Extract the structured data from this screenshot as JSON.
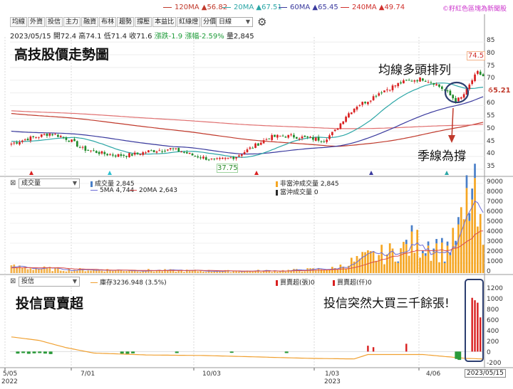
{
  "ma_legend": [
    {
      "label": "120MA",
      "value": "▲56.82",
      "color": "#c0392b"
    },
    {
      "label": "20MA",
      "value": "▲67.51",
      "color": "#2ba6a6"
    },
    {
      "label": "60MA",
      "value": "▲65.45",
      "color": "#3a3a9e"
    },
    {
      "label": "240MA",
      "value": "▲49.74",
      "color": "#d0312d"
    }
  ],
  "brand": {
    "text": "©籽紅色區塊為新聞股",
    "color": "#cc33cc"
  },
  "toolbar": {
    "buttons": [
      "均線",
      "外資",
      "投信",
      "主力",
      "融資",
      "布林",
      "趨勢",
      "撐壓",
      "本益比",
      "紅綠燈",
      "分價量"
    ],
    "period": "日線"
  },
  "quote": {
    "date": "2023/05/15",
    "open_label": "開",
    "open": "72.4",
    "high_label": "高",
    "high": "74.1",
    "low_label": "低",
    "low": "71.4",
    "close_label": "收",
    "close": "71.6",
    "change_label": "漲跌",
    "change": "-1.9",
    "pct_label": "漲幅",
    "pct": "-2.59%",
    "volume_label": "量",
    "volume": "2,845"
  },
  "price_panel": {
    "title": "高技股價走勢圖",
    "annotation_ma": "均線多頭排列",
    "annotation_support": "季線為撐",
    "high_marker": "74.5",
    "low_marker": "37.75",
    "ma60_marker": "65.21",
    "y_ticks": [
      "85",
      "80",
      "75",
      "70",
      "65",
      "60",
      "55",
      "50",
      "45",
      "40",
      "35"
    ]
  },
  "volume_panel": {
    "selector": "成交量",
    "legend": [
      {
        "label": "成交量 2,845",
        "color": "#4a7fc8"
      },
      {
        "label": "5MA 4,744",
        "color": "#6b6bd6"
      },
      {
        "label": "20MA 2,643",
        "color": "#d94c4c"
      },
      {
        "label": "非當沖成交量 2,845",
        "color": "#f5a623"
      },
      {
        "label": "當沖成交量 0",
        "color": "#2a2a2a"
      }
    ],
    "y_ticks": [
      "9000",
      "8000",
      "7000",
      "6000",
      "5000",
      "4000",
      "3000",
      "2000",
      "1000",
      "0"
    ]
  },
  "inst_panel": {
    "selector": "投信",
    "title": "投信買賣超",
    "legend": [
      {
        "label": "庫存3236.948 (3.5%)",
        "color": "#f0a030"
      },
      {
        "label": "買賣超(張)0",
        "color": "#d92020"
      },
      {
        "label": "買賣超(仟)0",
        "color": "#d92020"
      }
    ],
    "annotation": "投信突然大買三千餘張!",
    "y_ticks": [
      "1200",
      "1000",
      "800",
      "600",
      "400",
      "200",
      "0",
      "-200"
    ]
  },
  "x_axis": {
    "labels": [
      "5/05",
      "7/01",
      "10/03",
      "1/03",
      "4/06"
    ],
    "years": [
      "2022",
      "2023"
    ],
    "current": "2023/05/15"
  },
  "chart_data": {
    "type": "candlestick",
    "title": "高技股價走勢圖",
    "x_range": [
      "2022/05/05",
      "2023/05/15"
    ],
    "x_ticks": [
      "5/05",
      "7/01",
      "10/03",
      "1/03",
      "4/06"
    ],
    "price_ylim": [
      33,
      87
    ],
    "price_anchors": [
      [
        0,
        45
      ],
      [
        3,
        46
      ],
      [
        6,
        47
      ],
      [
        10,
        48
      ],
      [
        14,
        49
      ],
      [
        18,
        48
      ],
      [
        22,
        46
      ],
      [
        26,
        43
      ],
      [
        30,
        42
      ],
      [
        34,
        41
      ],
      [
        38,
        40.5
      ],
      [
        42,
        40.5
      ],
      [
        46,
        41
      ],
      [
        50,
        42
      ],
      [
        54,
        42.5
      ],
      [
        58,
        43
      ],
      [
        62,
        42
      ],
      [
        66,
        40.5
      ],
      [
        70,
        39.5
      ],
      [
        74,
        38.5
      ],
      [
        78,
        39
      ],
      [
        82,
        40
      ],
      [
        86,
        42.5
      ],
      [
        90,
        45
      ],
      [
        94,
        47.5
      ],
      [
        98,
        48
      ],
      [
        102,
        48
      ],
      [
        106,
        47.5
      ],
      [
        110,
        47
      ],
      [
        114,
        46.5
      ],
      [
        118,
        50
      ],
      [
        122,
        56
      ],
      [
        126,
        60
      ],
      [
        130,
        62
      ],
      [
        134,
        65
      ],
      [
        138,
        67
      ],
      [
        142,
        69
      ],
      [
        146,
        70
      ],
      [
        150,
        70.5
      ],
      [
        154,
        69
      ],
      [
        158,
        66
      ],
      [
        162,
        62
      ],
      [
        164,
        63
      ],
      [
        166,
        66
      ],
      [
        168,
        70
      ],
      [
        170,
        73
      ],
      [
        172,
        71.6
      ]
    ],
    "ma_current": {
      "120MA": 56.82,
      "20MA": 67.51,
      "60MA": 65.45,
      "240MA": 49.74
    },
    "volume_ylim": [
      0,
      9000
    ],
    "volume_anchors": [
      [
        0,
        600
      ],
      [
        20,
        350
      ],
      [
        40,
        300
      ],
      [
        60,
        250
      ],
      [
        80,
        200
      ],
      [
        100,
        250
      ],
      [
        118,
        450
      ],
      [
        124,
        1100
      ],
      [
        130,
        1600
      ],
      [
        136,
        1900
      ],
      [
        142,
        2300
      ],
      [
        148,
        3000
      ],
      [
        154,
        2600
      ],
      [
        158,
        2000
      ],
      [
        162,
        3300
      ],
      [
        165,
        5200
      ],
      [
        167,
        7200
      ],
      [
        169,
        6200
      ],
      [
        172,
        2845
      ]
    ],
    "inst_ylim": [
      -300,
      1300
    ],
    "inst_buys": [
      [
        130,
        120
      ],
      [
        132,
        90
      ],
      [
        144,
        160
      ],
      [
        168,
        1100
      ],
      [
        169,
        1050
      ],
      [
        170,
        1000
      ],
      [
        171,
        700
      ]
    ],
    "inst_sells": [
      [
        2,
        -40
      ],
      [
        4,
        -30
      ],
      [
        6,
        -45
      ],
      [
        8,
        -35
      ],
      [
        10,
        -30
      ],
      [
        12,
        -40
      ],
      [
        14,
        -50
      ],
      [
        40,
        -40
      ],
      [
        42,
        -45
      ],
      [
        44,
        -35
      ],
      [
        60,
        -30
      ],
      [
        80,
        -25
      ],
      [
        100,
        -30
      ],
      [
        162,
        -150
      ],
      [
        163,
        -170
      ]
    ],
    "inst_stock_anchors": [
      [
        0,
        300
      ],
      [
        10,
        230
      ],
      [
        20,
        80
      ],
      [
        30,
        -30
      ],
      [
        50,
        -70
      ],
      [
        70,
        -80
      ],
      [
        90,
        -110
      ],
      [
        110,
        -140
      ],
      [
        125,
        -150
      ],
      [
        130,
        -60
      ],
      [
        150,
        -60
      ],
      [
        158,
        -100
      ],
      [
        166,
        -140
      ],
      [
        172,
        -150
      ]
    ]
  }
}
